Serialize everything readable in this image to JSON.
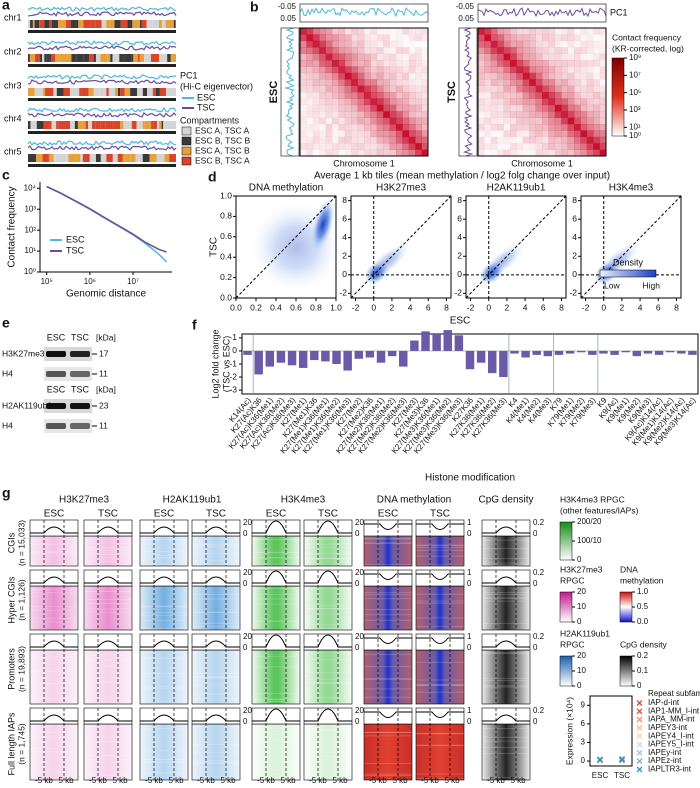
{
  "a": {
    "label": "a",
    "chromosomes": [
      "chr1",
      "chr2",
      "chr3",
      "chr4",
      "chr5"
    ],
    "legend": {
      "pc1_title": "PC1",
      "pc1_subtitle": "(Hi-C eigenvector)",
      "series": [
        {
          "name": "ESC",
          "color": "#4fb8d8"
        },
        {
          "name": "TSC",
          "color": "#6a4c9c"
        }
      ],
      "compartments_title": "Compartments",
      "compartments": [
        {
          "name": "ESC A, TSC A",
          "color": "#d4d4d4"
        },
        {
          "name": "ESC B, TSC B",
          "color": "#3a3a3a"
        },
        {
          "name": "ESC A, TSC B",
          "color": "#e8a03a"
        },
        {
          "name": "ESC B, TSC A",
          "color": "#d9442a"
        }
      ]
    }
  },
  "b": {
    "label": "b",
    "pc1_ticks": [
      -0.05,
      0.05
    ],
    "pc1_label": "PC1",
    "row_labels": [
      "ESC",
      "TSC"
    ],
    "x_label": "Chromosome 1",
    "colorbar_title": "Contact frequency",
    "colorbar_subtitle": "(KR-corrected, log)",
    "colorbar_color": "#c8102e",
    "colorbar_lim": [
      1,
      1000000000
    ],
    "colorbar_ticks": [
      {
        "value": 1000000000,
        "label": "10⁹"
      },
      {
        "value": 10000000,
        "label": "10⁷"
      },
      {
        "value": 100000,
        "label": "10⁵"
      },
      {
        "value": 1000,
        "label": "10³"
      },
      {
        "value": 10,
        "label": "10¹"
      },
      {
        "value": 1,
        "label": "10⁰"
      }
    ]
  },
  "c": {
    "label": "c",
    "chart_data": {
      "type": "line",
      "x_label": "Genomic distance",
      "y_label": "Contact frequency",
      "log_x": true,
      "log_y": true,
      "x": [
        100000,
        200000,
        500000,
        1000000,
        2000000,
        5000000,
        10000000,
        20000000,
        40000000,
        60000000
      ],
      "series": [
        {
          "name": "ESC",
          "color": "#4fb8d8",
          "values": [
            12000,
            6000,
            2200,
            1000,
            420,
            140,
            60,
            22,
            7,
            3
          ]
        },
        {
          "name": "TSC",
          "color": "#6a4c9c",
          "values": [
            12000,
            6200,
            2300,
            1050,
            450,
            150,
            65,
            25,
            12,
            9
          ]
        }
      ],
      "xlim": [
        70000,
        80000000
      ],
      "ylim": [
        1,
        20000
      ],
      "xticks": [
        {
          "value": 100000,
          "label": "10⁵"
        },
        {
          "value": 1000000,
          "label": "10⁶"
        },
        {
          "value": 10000000,
          "label": "10⁷"
        }
      ],
      "yticks": [
        {
          "value": 10000,
          "label": "10⁴"
        },
        {
          "value": 1000,
          "label": "10³"
        },
        {
          "value": 100,
          "label": "10²"
        },
        {
          "value": 10,
          "label": "10¹"
        },
        {
          "value": 1,
          "label": "10⁰"
        }
      ]
    }
  },
  "d": {
    "label": "d",
    "title": "Average 1 kb tiles (mean methylation / log2 folg change over input)",
    "x_label": "ESC",
    "y_label": "TSC",
    "legend": {
      "title": "Density",
      "low": "Low",
      "high": "High"
    },
    "panels": [
      {
        "title": "DNA methylation",
        "xlim": [
          0,
          1.0
        ],
        "ylim": [
          0,
          1.0
        ],
        "xticks": [
          {
            "value": 0,
            "label": "0.0"
          },
          0.2,
          0.4,
          0.6,
          0.8,
          {
            "value": 1,
            "label": "1.0"
          }
        ],
        "yticks": [
          {
            "value": 0,
            "label": "0.0"
          },
          0.2,
          0.4,
          0.6,
          0.8,
          {
            "value": 1,
            "label": "1.0"
          }
        ]
      },
      {
        "title": "H3K27me3",
        "xlim": [
          -2.5,
          8.5
        ],
        "ylim": [
          -2.5,
          8.5
        ],
        "xticks": [
          -2,
          0,
          2,
          4,
          6,
          8
        ],
        "yticks": [
          -2,
          0,
          2,
          4,
          6,
          8
        ]
      },
      {
        "title": "H2AK119ub1",
        "xlim": [
          -2.5,
          8.5
        ],
        "ylim": [
          -2.5,
          8.5
        ],
        "xticks": [
          -2,
          0,
          2,
          4,
          6,
          8
        ],
        "yticks": [
          -2,
          0,
          2,
          4,
          6,
          8
        ]
      },
      {
        "title": "H3K4me3",
        "xlim": [
          -2.5,
          8.5
        ],
        "ylim": [
          -2.5,
          8.5
        ],
        "xticks": [
          -2,
          0,
          2,
          4,
          6,
          8
        ],
        "yticks": [
          -2,
          0,
          2,
          4,
          6,
          8
        ]
      }
    ]
  },
  "e": {
    "label": "e",
    "columns": [
      "ESC",
      "TSC"
    ],
    "unit": "[kDa]",
    "blots": [
      {
        "rows": [
          {
            "name": "H3K27me3",
            "kda": 17
          },
          {
            "name": "H4",
            "kda": 11
          }
        ]
      },
      {
        "rows": [
          {
            "name": "H2AK119ub1",
            "kda": 23
          },
          {
            "name": "H4",
            "kda": 11
          }
        ]
      }
    ]
  },
  "f": {
    "label": "f",
    "chart_data": {
      "type": "bar",
      "y_label": [
        "Log2 fold change",
        "(TSC vs ESC)"
      ],
      "x_label": "Histone modification",
      "color": "#6a5aa8",
      "categories": [
        "K14(Ac)",
        "K27(Ac)K36",
        "K27(Ac)K36(Me1)",
        "K27(Ac)K36(Me2)",
        "K27(Ac)K36(Me3)",
        "K27(Me1)",
        "K27(Me1)K36",
        "K27(Me1)K36(Me1)",
        "K27(Me1)K36(Me2)",
        "K27(Me1)K36(Me3)",
        "K27(Me2)",
        "K27(Me2)K36",
        "K27(Me2)K36(Me1)",
        "K27(Me2)K36(Me2)",
        "K27(Me2)K36(Me3)",
        "K27(Me3)",
        "K27(Me3)K36",
        "K27(Me3)K36(Me1)",
        "K27(Me3)K36(Me2)",
        "K27(Me3)K36(Me3)",
        "K27K36",
        "K27K36(Me1)",
        "K27K36(Me2)",
        "K27K36(Me3)",
        "K4",
        "K4(Me1)",
        "K4(Me2)",
        "K4(Me3)",
        "K79",
        "K79(Me1)",
        "K79(Me2)",
        "K79(Me3)",
        "K9",
        "K9(Ac)",
        "K9(Me1)",
        "K9(Me2)",
        "K9(Me3)",
        "K9(Ac)K14(Ac)",
        "K9(Me1)K14(Ac)",
        "K9(Me2)K14(Ac)",
        "K9(Me3)K14(Ac)"
      ],
      "values": [
        -0.3,
        -1.8,
        -1.2,
        -0.9,
        -1.1,
        -1.3,
        -0.7,
        -0.8,
        -1.0,
        -1.5,
        -0.6,
        -0.5,
        -0.9,
        -0.4,
        -1.2,
        0.8,
        1.5,
        1.3,
        1.6,
        1.2,
        -1.4,
        -0.9,
        -1.7,
        -2.0,
        -0.2,
        -0.5,
        -0.3,
        -0.4,
        -0.3,
        -0.2,
        -0.1,
        -0.3,
        -0.2,
        -0.3,
        -0.1,
        -0.4,
        -0.2,
        -0.3,
        -0.1,
        -0.2,
        -0.3
      ],
      "ylim": [
        -3.3,
        1.3
      ],
      "yticks": [
        1,
        0,
        -1,
        -2,
        -3
      ]
    }
  },
  "g": {
    "label": "g",
    "marks": [
      "H3K27me3",
      "H2AK119ub1",
      "H3K4me3",
      "DNA methylation",
      "CpG density"
    ],
    "samples": [
      "ESC",
      "TSC"
    ],
    "rows": [
      {
        "name": "CGIs",
        "n": "(n = 15,033)"
      },
      {
        "name": "Hyper CGIs",
        "n": "(n = 1,126)"
      },
      {
        "name": "Promoters",
        "n": "(n = 19,893)"
      },
      {
        "name": "Full length IAPs",
        "n": "(n = 1,745)"
      }
    ],
    "x_ticks": [
      "-5 kb",
      "5 kb"
    ],
    "profile_scales": {
      "signal": [
        20,
        0
      ],
      "methylation": [
        1,
        0
      ],
      "cpg": [
        0.2,
        0
      ]
    },
    "colorbars": {
      "h3k4me3": {
        "title": "H3K4me3 RPGC",
        "subtitle": "(other features/IAPs)",
        "ticks": [
          {
            "value": 200,
            "label": "200/20"
          },
          {
            "value": 100,
            "label": "100/10"
          },
          0
        ]
      },
      "h3k27me3": {
        "title": "H3K27me3",
        "subtitle": "RPGC",
        "ticks": [
          20,
          10,
          0
        ]
      },
      "dna": {
        "title": "DNA",
        "subtitle": "methylation",
        "ticks": [
          {
            "value": 1,
            "label": "1.0"
          },
          0.5,
          {
            "value": 0,
            "label": "0.0"
          }
        ]
      },
      "h2ak119ub1": {
        "title": "H2AK119ub1",
        "subtitle": "RPGC",
        "ticks": [
          20,
          10,
          0
        ]
      },
      "cpg": {
        "title": "CpG density",
        "ticks": [
          0.2,
          0.1,
          0
        ]
      }
    },
    "expression": {
      "type": "scatter",
      "y_label": "Expression (×10⁴)",
      "categories": [
        "ESC",
        "TSC"
      ],
      "legend_title": "Repeat subfamily",
      "ylim": [
        -0.8,
        10.5
      ],
      "yticks": [
        9,
        6,
        3,
        0
      ],
      "series": [
        {
          "name": "IAP-d-int",
          "color": "#d7301f",
          "values": [
            0.1,
            0.1
          ]
        },
        {
          "name": "IAP1-MM_I-int",
          "color": "#e34a33",
          "values": [
            0.1,
            0.2
          ]
        },
        {
          "name": "IAPA_MM-int",
          "color": "#fc8d59",
          "values": [
            0.1,
            0.1
          ]
        },
        {
          "name": "IAPEY3-int",
          "color": "#fdbb84",
          "values": [
            0.1,
            0.1
          ]
        },
        {
          "name": "IAPEY4_I-int",
          "color": "#fdd49e",
          "values": [
            0.1,
            0.1
          ]
        },
        {
          "name": "IAPEY5_I-int",
          "color": "#d0d1e6",
          "values": [
            0.1,
            0.1
          ]
        },
        {
          "name": "IAPEy-int",
          "color": "#a6bddb",
          "values": [
            0.1,
            0.1
          ]
        },
        {
          "name": "IAPEz-int",
          "color": "#74a9cf",
          "values": [
            0.3,
            0.4
          ]
        },
        {
          "name": "IAPLTR3-int",
          "color": "#2b8cbe",
          "values": [
            0.2,
            0.2
          ]
        }
      ]
    }
  }
}
